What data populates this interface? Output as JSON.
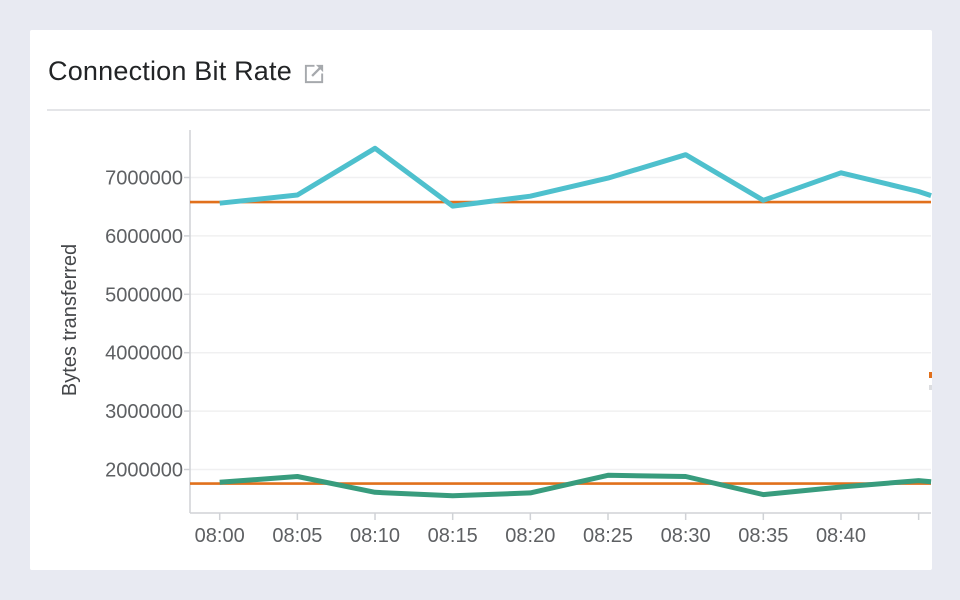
{
  "page": {
    "background_color": "#E8EAF2",
    "card_color": "#FFFFFF"
  },
  "card": {
    "title": "Connection Bit Rate",
    "open_icon": "external-link-icon",
    "icon_color": "#A6A9AD"
  },
  "chart_data": {
    "type": "line",
    "title": "Connection Bit Rate",
    "xlabel": "",
    "ylabel": "Bytes transferred",
    "grid": "horizontal",
    "legend": "none",
    "ylim": [
      1250000,
      7810000
    ],
    "y_ticks": [
      {
        "value": 7000000,
        "label": "7000000"
      },
      {
        "value": 6000000,
        "label": "6000000"
      },
      {
        "value": 5000000,
        "label": "5000000"
      },
      {
        "value": 4000000,
        "label": "4000000"
      },
      {
        "value": 3000000,
        "label": "3000000"
      },
      {
        "value": 2000000,
        "label": "2000000"
      }
    ],
    "x_ticks": [
      {
        "t": 0,
        "label": "08:00"
      },
      {
        "t": 5,
        "label": "08:05"
      },
      {
        "t": 10,
        "label": "08:10"
      },
      {
        "t": 15,
        "label": "08:15"
      },
      {
        "t": 20,
        "label": "08:20"
      },
      {
        "t": 25,
        "label": "08:25"
      },
      {
        "t": 30,
        "label": "08:30"
      },
      {
        "t": 35,
        "label": "08:35"
      },
      {
        "t": 40,
        "label": "08:40"
      },
      {
        "t": 45,
        "label": ""
      }
    ],
    "series": [
      {
        "name": "upper-series",
        "color": "#4EC0CD",
        "minutes": [
          0,
          5,
          10,
          15,
          20,
          25,
          30,
          35,
          40,
          45,
          45.8
        ],
        "values": [
          6560000,
          6700000,
          7500000,
          6510000,
          6680000,
          6990000,
          7390000,
          6610000,
          7080000,
          6760000,
          6690000
        ]
      },
      {
        "name": "lower-series",
        "color": "#389C7D",
        "minutes": [
          0,
          5,
          10,
          15,
          20,
          25,
          30,
          35,
          40,
          45,
          45.8
        ],
        "values": [
          1780000,
          1880000,
          1610000,
          1550000,
          1600000,
          1900000,
          1880000,
          1570000,
          1700000,
          1810000,
          1790000
        ]
      }
    ],
    "reference_lines": [
      {
        "name": "upper-reference-line",
        "color": "#E1701C",
        "value": 6580000
      },
      {
        "name": "lower-reference-line",
        "color": "#E1701C",
        "value": 1760000
      }
    ],
    "colors": {
      "gridline": "#F0F0F1",
      "axis": "#D0D2D6",
      "tick_text": "#5E6063"
    }
  }
}
